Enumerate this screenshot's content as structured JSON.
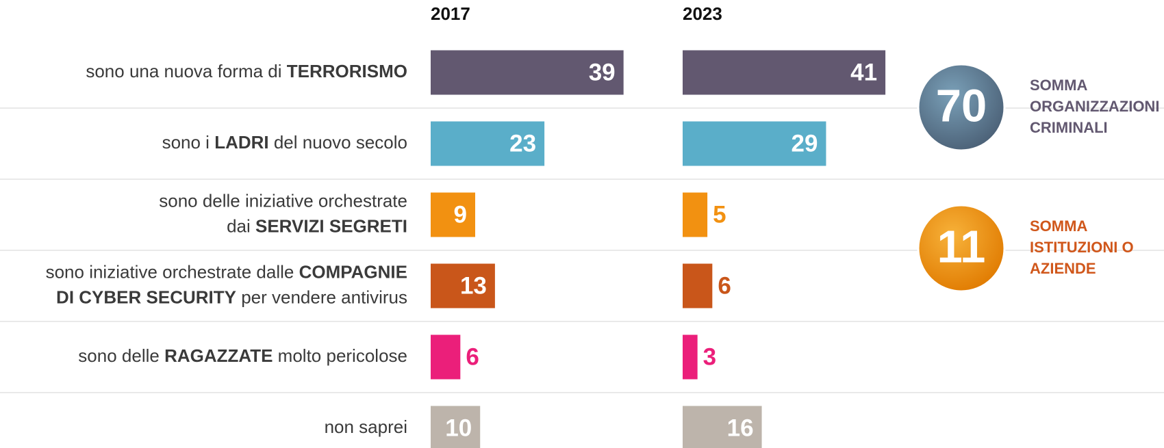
{
  "chart_data": {
    "type": "bar",
    "orientation": "horizontal",
    "panels": [
      "2017",
      "2023"
    ],
    "categories": [
      [
        [
          {
            "text": "sono una nuova forma di ",
            "bold": false
          },
          {
            "text": "TERRORISMO",
            "bold": true
          }
        ]
      ],
      [
        [
          {
            "text": "sono i ",
            "bold": false
          },
          {
            "text": "LADRI",
            "bold": true
          },
          {
            "text": " del nuovo secolo",
            "bold": false
          }
        ]
      ],
      [
        [
          {
            "text": "sono delle iniziative orchestrate",
            "bold": false
          }
        ],
        [
          {
            "text": "dai ",
            "bold": false
          },
          {
            "text": "SERVIZI SEGRETI",
            "bold": true
          }
        ]
      ],
      [
        [
          {
            "text": "sono iniziative orchestrate dalle ",
            "bold": false
          },
          {
            "text": "COMPAGNIE",
            "bold": true
          }
        ],
        [
          {
            "text": "DI CYBER SECURITY",
            "bold": true
          },
          {
            "text": " per vendere antivirus",
            "bold": false
          }
        ]
      ],
      [
        [
          {
            "text": "sono delle ",
            "bold": false
          },
          {
            "text": "RAGAZZATE",
            "bold": true
          },
          {
            "text": " molto pericolose",
            "bold": false
          }
        ]
      ],
      [
        [
          {
            "text": "non saprei",
            "bold": false
          }
        ]
      ]
    ],
    "colors": [
      "#625870",
      "#5aaec9",
      "#f29111",
      "#c9561a",
      "#eb1f7a",
      "#bdb4ab"
    ],
    "series": [
      {
        "name": "2017",
        "values": [
          39,
          23,
          9,
          13,
          6,
          10
        ]
      },
      {
        "name": "2023",
        "values": [
          41,
          29,
          5,
          6,
          3,
          16
        ]
      }
    ],
    "xlim": [
      0,
      45
    ],
    "summaries": [
      {
        "value": 70,
        "text": [
          "SOMMA",
          "ORGANIZZAZIONI",
          "CRIMINALI"
        ],
        "color": "#625870",
        "circle": "#4f7690"
      },
      {
        "value": 11,
        "text": [
          "SOMMA",
          "ISTITUZIONI O",
          "AZIENDE"
        ],
        "color": "#d0571b",
        "circle": "#f39200"
      }
    ]
  }
}
